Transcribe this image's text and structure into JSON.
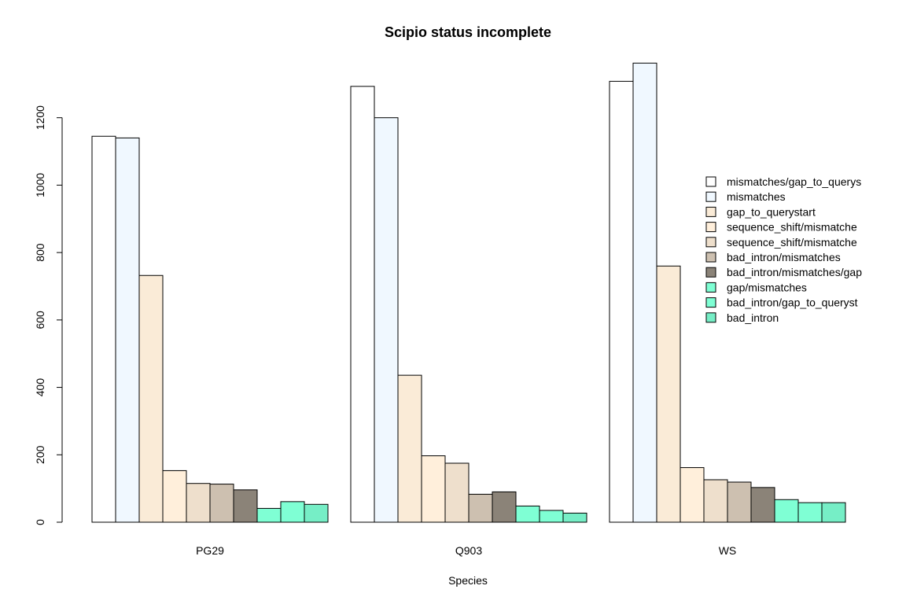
{
  "chart_data": {
    "type": "bar",
    "title": "Scipio status incomplete",
    "xlabel": "Species",
    "ylabel": "",
    "ylim": [
      0,
      1370
    ],
    "yticks": [
      0,
      200,
      400,
      600,
      800,
      1000,
      1200
    ],
    "grid": false,
    "legend_position": "right",
    "categories": [
      "PG29",
      "Q903",
      "WS"
    ],
    "series": [
      {
        "name": "mismatches/gap_to_querys",
        "color": "#ffffff",
        "values": [
          1145,
          1293,
          1308
        ]
      },
      {
        "name": "mismatches",
        "color": "#f0f8ff",
        "values": [
          1140,
          1200,
          1362
        ]
      },
      {
        "name": "gap_to_querystart",
        "color": "#faebd7",
        "values": [
          732,
          436,
          760
        ]
      },
      {
        "name": "sequence_shift/mismatche",
        "color": "#ffefdb",
        "values": [
          153,
          197,
          162
        ]
      },
      {
        "name": "sequence_shift/mismatche",
        "color": "#eedfcc",
        "values": [
          115,
          175,
          126
        ]
      },
      {
        "name": "bad_intron/mismatches",
        "color": "#cdc0b0",
        "values": [
          113,
          83,
          119
        ]
      },
      {
        "name": "bad_intron/mismatches/gap",
        "color": "#8b8378",
        "values": [
          96,
          90,
          103
        ]
      },
      {
        "name": "gap/mismatches",
        "color": "#7fffd4",
        "values": [
          41,
          48,
          67
        ]
      },
      {
        "name": "bad_intron/gap_to_queryst",
        "color": "#7fffd4",
        "values": [
          61,
          35,
          58
        ]
      },
      {
        "name": "bad_intron",
        "color": "#76eec6",
        "values": [
          53,
          27,
          58
        ]
      }
    ]
  }
}
